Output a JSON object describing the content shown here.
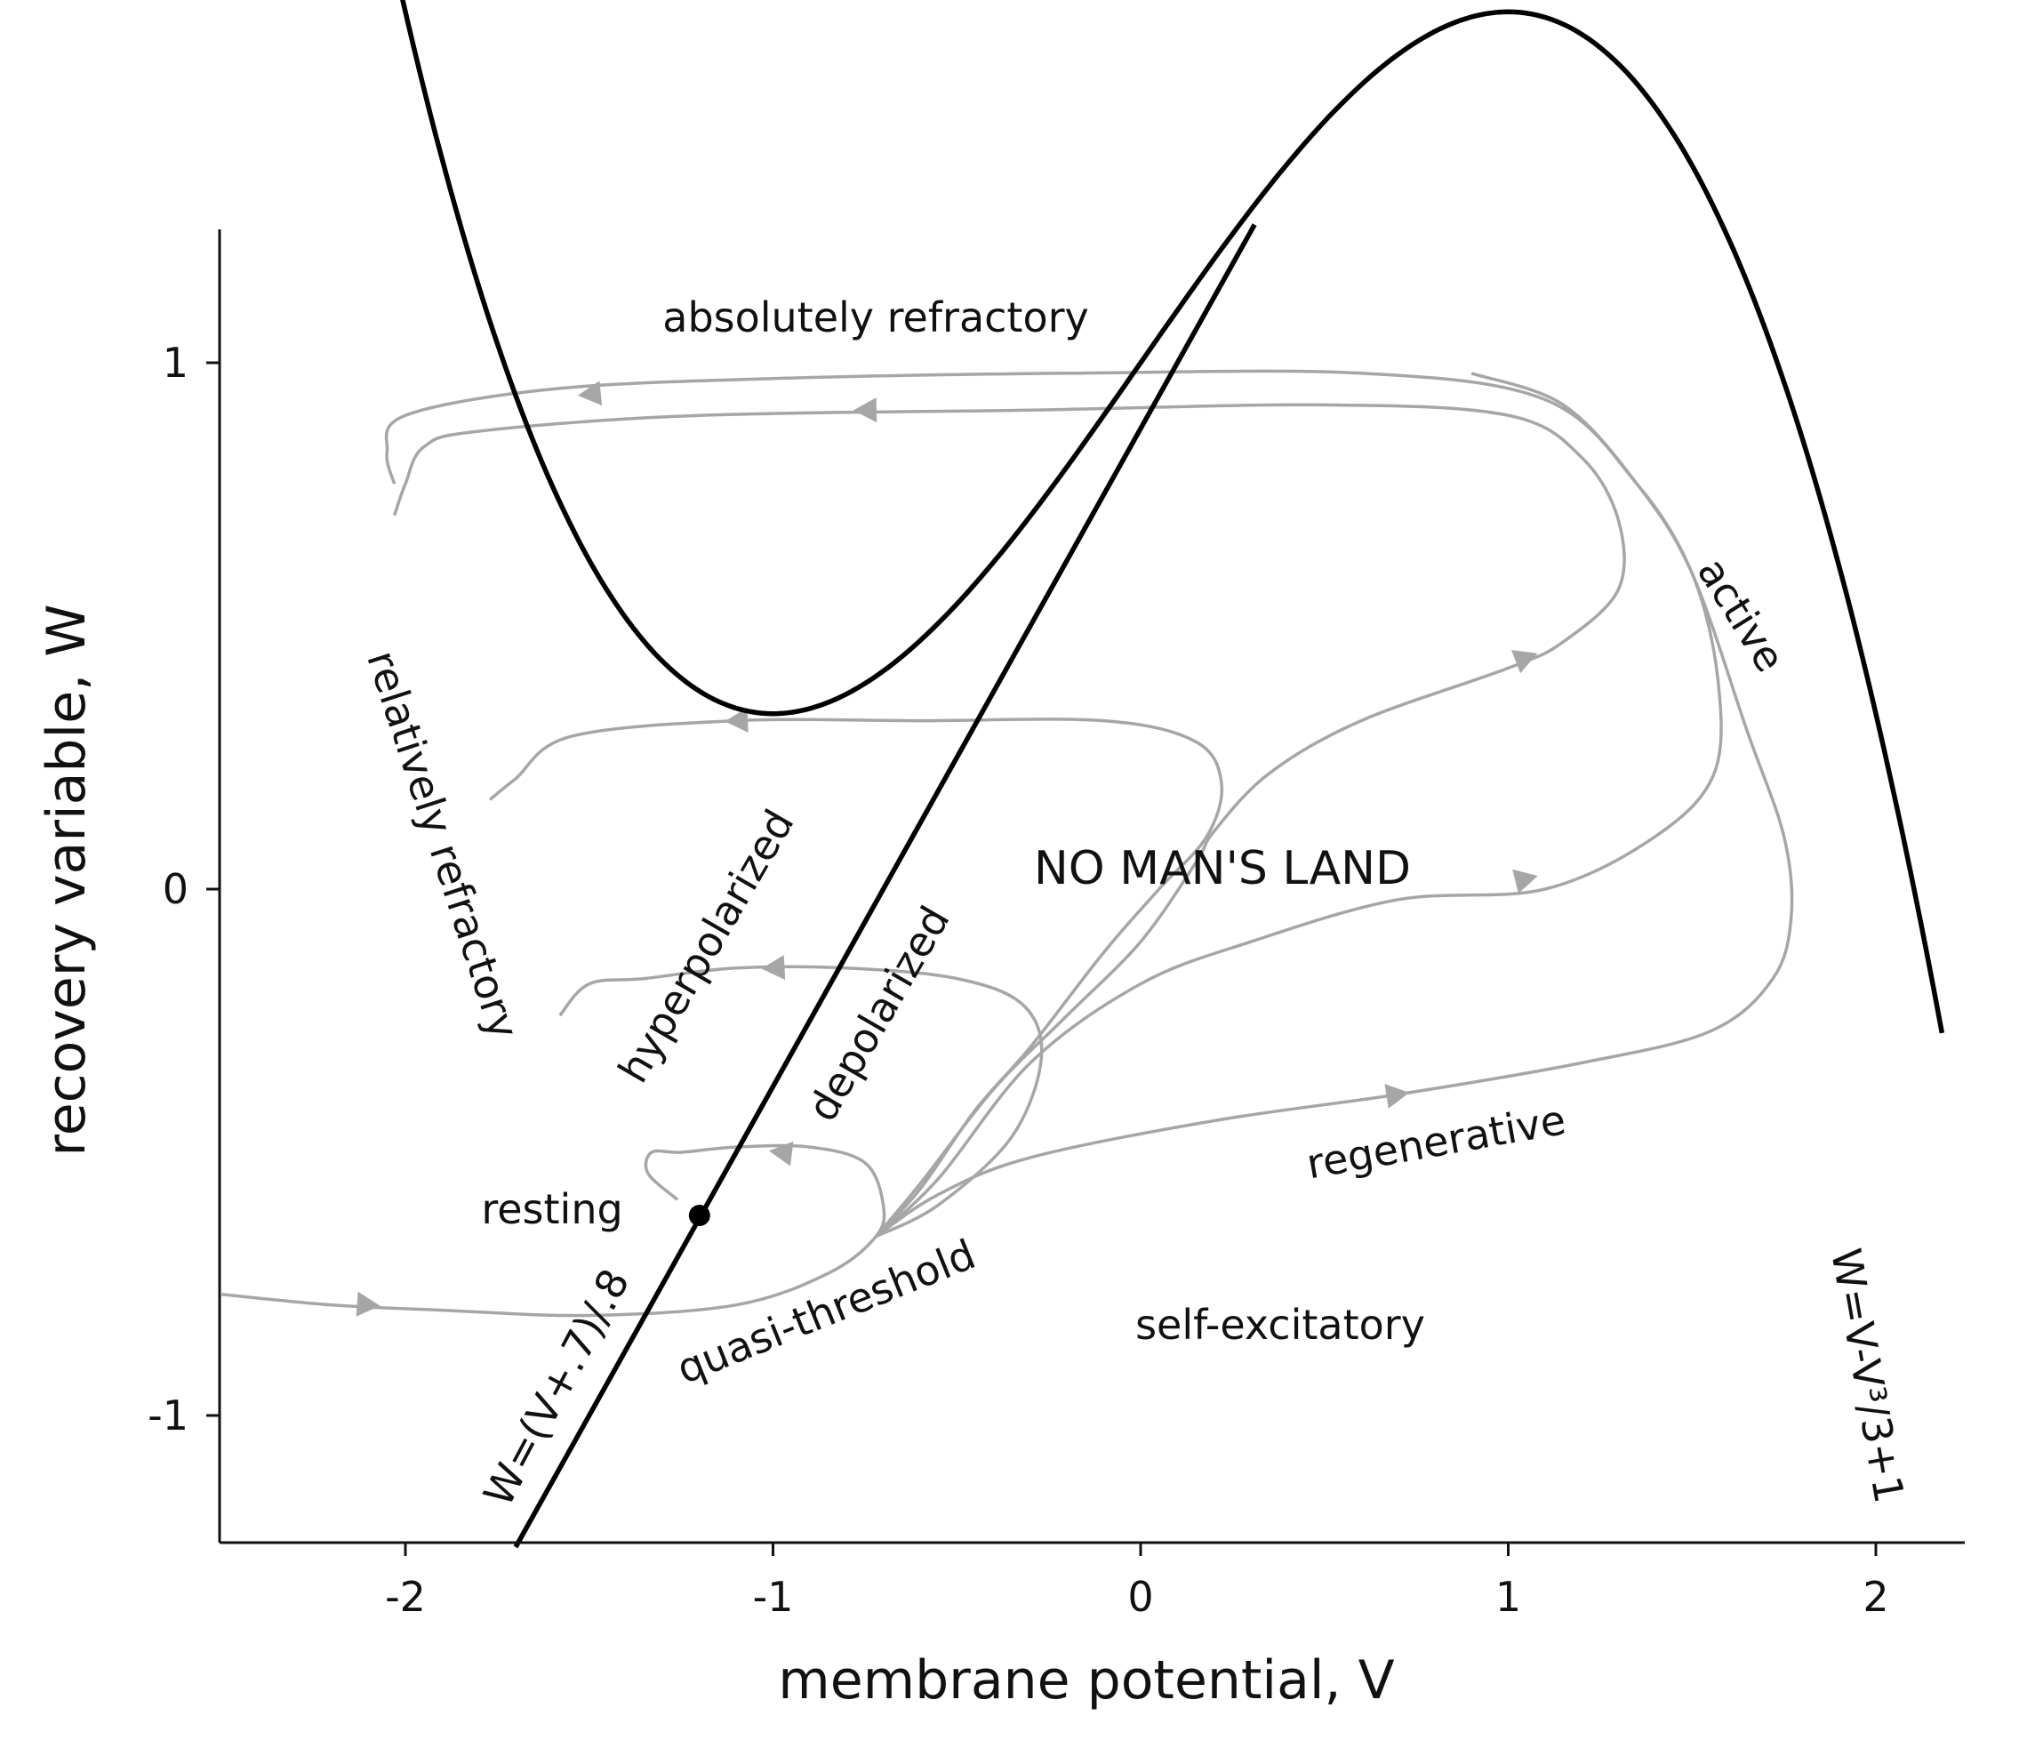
{
  "chart_data": {
    "type": "line",
    "title": "",
    "xlabel": "membrane potential, V",
    "ylabel": "recovery variable, W",
    "xlim": [
      -2.5,
      2.25
    ],
    "ylim": [
      -1.25,
      1.25
    ],
    "xticks": [
      -2,
      -1,
      0,
      1,
      2
    ],
    "yticks": [
      -1,
      0,
      1
    ],
    "xtick_labels": [
      "-2",
      "-1",
      "0",
      "1",
      "2"
    ],
    "ytick_labels": [
      "-1",
      "0",
      "1"
    ],
    "grid": false,
    "legend": "none",
    "curves": [
      {
        "role": "cubic nullcline",
        "equation_label": "W=V-V³/3+1",
        "formula": "W = V - V^3/3 + 1",
        "v_range": [
          -2.18,
          2.18
        ],
        "color": "#000000"
      },
      {
        "role": "linear nullcline",
        "equation_label": "W=(V+.7)/.8",
        "formula": "W = (V + 0.7)/0.8",
        "v_range": [
          -1.7,
          0.31
        ],
        "color": "#000000"
      }
    ],
    "equilibrium": {
      "label": "resting",
      "v": -1.2,
      "w": -0.62
    },
    "trajectory_color": "#a6a6a6",
    "trajectories": [
      {
        "points": [
          [
            -2.5,
            -0.77
          ],
          [
            -2.2,
            -0.79
          ],
          [
            -1.9,
            -0.8
          ],
          [
            -1.5,
            -0.81
          ],
          [
            -1.1,
            -0.79
          ],
          [
            -0.85,
            -0.73
          ],
          [
            -0.72,
            -0.66
          ],
          [
            -0.7,
            -0.6
          ],
          [
            -0.75,
            -0.52
          ],
          [
            -0.9,
            -0.49
          ],
          [
            -1.1,
            -0.49
          ],
          [
            -1.25,
            -0.5
          ],
          [
            -1.33,
            -0.5
          ],
          [
            -1.34,
            -0.54
          ],
          [
            -1.26,
            -0.59
          ]
        ],
        "arrows": [
          [
            -2.1,
            -0.79
          ],
          [
            -0.98,
            -0.5
          ]
        ]
      },
      {
        "points": [
          [
            -0.72,
            -0.66
          ],
          [
            -0.55,
            -0.6
          ],
          [
            -0.35,
            -0.47
          ],
          [
            -0.27,
            -0.32
          ],
          [
            -0.32,
            -0.22
          ],
          [
            -0.5,
            -0.17
          ],
          [
            -0.8,
            -0.15
          ],
          [
            -1.1,
            -0.15
          ],
          [
            -1.35,
            -0.17
          ],
          [
            -1.5,
            -0.18
          ],
          [
            -1.58,
            -0.24
          ]
        ],
        "arrows": [
          [
            -1.0,
            -0.15
          ]
        ]
      },
      {
        "points": [
          [
            -0.72,
            -0.66
          ],
          [
            -0.6,
            -0.57
          ],
          [
            -0.45,
            -0.42
          ],
          [
            -0.3,
            -0.3
          ],
          [
            -0.1,
            -0.12
          ],
          [
            0.05,
            0.0
          ],
          [
            0.18,
            0.1
          ],
          [
            0.22,
            0.2
          ],
          [
            0.15,
            0.28
          ],
          [
            -0.1,
            0.32
          ],
          [
            -0.6,
            0.32
          ],
          [
            -1.1,
            0.32
          ],
          [
            -1.55,
            0.29
          ],
          [
            -1.7,
            0.21
          ],
          [
            -1.77,
            0.17
          ]
        ],
        "arrows": [
          [
            -1.1,
            0.32
          ]
        ]
      },
      {
        "points": [
          [
            -0.72,
            -0.66
          ],
          [
            -0.6,
            -0.56
          ],
          [
            -0.4,
            -0.38
          ],
          [
            -0.2,
            -0.24
          ],
          [
            0.0,
            -0.1
          ],
          [
            0.15,
            0.05
          ],
          [
            0.2,
            0.11
          ],
          [
            0.35,
            0.22
          ],
          [
            0.6,
            0.32
          ],
          [
            1.0,
            0.42
          ],
          [
            1.15,
            0.47
          ],
          [
            1.3,
            0.57
          ],
          [
            1.3,
            0.7
          ],
          [
            1.2,
            0.82
          ],
          [
            1.0,
            0.9
          ],
          [
            0.5,
            0.92
          ],
          [
            -0.3,
            0.91
          ],
          [
            -1.2,
            0.9
          ],
          [
            -1.8,
            0.87
          ],
          [
            -1.95,
            0.84
          ],
          [
            -2.0,
            0.77
          ],
          [
            -2.03,
            0.71
          ]
        ],
        "arrows": [
          [
            1.05,
            0.44
          ],
          [
            -0.75,
            0.91
          ]
        ]
      },
      {
        "points": [
          [
            -0.72,
            -0.66
          ],
          [
            -0.55,
            -0.55
          ],
          [
            -0.3,
            -0.33
          ],
          [
            0.0,
            -0.18
          ],
          [
            0.3,
            -0.1
          ],
          [
            0.7,
            -0.02
          ],
          [
            1.1,
            0.0
          ],
          [
            1.4,
            0.1
          ],
          [
            1.56,
            0.22
          ],
          [
            1.57,
            0.4
          ],
          [
            1.5,
            0.6
          ],
          [
            1.35,
            0.77
          ],
          [
            1.1,
            0.93
          ],
          [
            0.6,
            0.98
          ],
          [
            -0.2,
            0.98
          ],
          [
            -1.0,
            0.97
          ],
          [
            -1.6,
            0.95
          ],
          [
            -2.0,
            0.9
          ],
          [
            -2.05,
            0.83
          ],
          [
            -2.03,
            0.77
          ]
        ],
        "arrows": [
          [
            1.05,
            0.02
          ],
          [
            -1.5,
            0.94
          ]
        ]
      },
      {
        "points": [
          [
            -0.72,
            -0.66
          ],
          [
            -0.55,
            -0.58
          ],
          [
            -0.3,
            -0.51
          ],
          [
            0.2,
            -0.44
          ],
          [
            0.7,
            -0.39
          ],
          [
            1.2,
            -0.33
          ],
          [
            1.55,
            -0.27
          ],
          [
            1.72,
            -0.17
          ],
          [
            1.77,
            -0.05
          ],
          [
            1.75,
            0.1
          ],
          [
            1.65,
            0.3
          ],
          [
            1.5,
            0.6
          ],
          [
            1.35,
            0.77
          ],
          [
            1.15,
            0.92
          ],
          [
            0.9,
            0.98
          ]
        ],
        "arrows": [
          [
            0.7,
            -0.39
          ]
        ]
      }
    ],
    "annotations": [
      "absolutely refractory",
      "relatively refractory",
      "hyperpolarized",
      "depolarized",
      "NO MAN'S LAND",
      "active",
      "regenerative",
      "resting",
      "quasi-threshold",
      "self-excitatory",
      "W=(V+.7)/.8",
      "W=V-V³/3+1"
    ]
  }
}
